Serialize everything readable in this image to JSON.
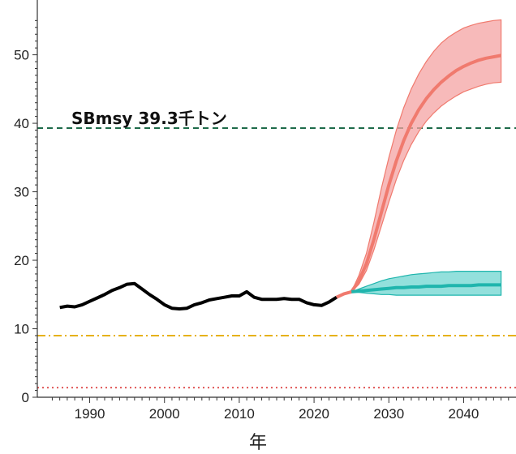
{
  "chart_data": {
    "type": "line",
    "title": "",
    "xlabel": "年",
    "ylabel": "",
    "xlim": [
      1983,
      2047
    ],
    "ylim": [
      0,
      58
    ],
    "x_ticks": [
      1990,
      2000,
      2010,
      2020,
      2030,
      2040
    ],
    "y_ticks": [
      0,
      10,
      20,
      30,
      40,
      50
    ],
    "grid": false,
    "colors": {
      "historical": "#000000",
      "red_band": "#f4a3a3",
      "red_line": "#f07a6e",
      "teal_band": "#6fd6d0",
      "teal_line": "#1fb5ad",
      "sbmsy": "#1e6b4a",
      "limit": "#e6b21a",
      "ban": "#e05555"
    },
    "reference_lines": [
      {
        "name": "SBmsy",
        "value": 39.3,
        "style": "dashed",
        "color": "#1e6b4a"
      },
      {
        "value": 9.0,
        "style": "dashdot",
        "color": "#e6b21a"
      },
      {
        "value": 1.4,
        "style": "dotted",
        "color": "#e05555"
      }
    ],
    "annotation": "SBmsy 39.3千トン",
    "series": [
      {
        "x": [
          1986,
          1987,
          1988,
          1989,
          1990,
          1991,
          1992,
          1993,
          1994,
          1995,
          1996,
          1997,
          1998,
          1999,
          2000,
          2001,
          2002,
          2003,
          2004,
          2005,
          2006,
          2007,
          2008,
          2009,
          2010,
          2011,
          2012,
          2013,
          2014,
          2015,
          2016,
          2017,
          2018,
          2019,
          2020,
          2021,
          2022,
          2023
        ],
        "values": [
          13.1,
          13.3,
          13.2,
          13.5,
          14.0,
          14.5,
          15.0,
          15.6,
          16.0,
          16.5,
          16.6,
          15.8,
          15.0,
          14.3,
          13.5,
          13.0,
          12.9,
          13.0,
          13.5,
          13.8,
          14.2,
          14.4,
          14.6,
          14.8,
          14.8,
          15.4,
          14.6,
          14.3,
          14.3,
          14.3,
          14.4,
          14.3,
          14.3,
          13.8,
          13.5,
          13.4,
          13.9,
          14.6
        ]
      },
      {
        "x": [
          2023,
          2024,
          2025,
          2026,
          2027,
          2028,
          2029,
          2030,
          2031,
          2032,
          2033,
          2034,
          2035,
          2036,
          2037,
          2038,
          2039,
          2040,
          2041,
          2042,
          2043,
          2044,
          2045
        ],
        "values": [
          14.6,
          15.1,
          15.4,
          17.0,
          19.5,
          23.0,
          27.0,
          31.0,
          34.5,
          37.5,
          40.0,
          42.0,
          43.6,
          44.9,
          46.0,
          46.9,
          47.7,
          48.3,
          48.8,
          49.2,
          49.5,
          49.7,
          49.9
        ],
        "lower": [
          14.6,
          15.1,
          15.4,
          16.5,
          18.5,
          21.5,
          25.0,
          28.5,
          31.8,
          34.6,
          36.9,
          38.8,
          40.3,
          41.5,
          42.5,
          43.3,
          44.0,
          44.6,
          45.0,
          45.4,
          45.7,
          45.9,
          46.0
        ],
        "upper": [
          14.6,
          15.1,
          15.4,
          17.8,
          21.0,
          25.5,
          30.5,
          35.0,
          39.0,
          42.3,
          45.0,
          47.2,
          49.0,
          50.5,
          51.7,
          52.6,
          53.3,
          53.9,
          54.3,
          54.6,
          54.8,
          55.0,
          55.1
        ]
      },
      {
        "x": [
          2025,
          2026,
          2027,
          2028,
          2029,
          2030,
          2031,
          2032,
          2033,
          2034,
          2035,
          2036,
          2037,
          2038,
          2039,
          2040,
          2041,
          2042,
          2043,
          2044,
          2045
        ],
        "values": [
          15.4,
          15.5,
          15.6,
          15.7,
          15.8,
          15.9,
          16.0,
          16.0,
          16.1,
          16.1,
          16.2,
          16.2,
          16.2,
          16.3,
          16.3,
          16.3,
          16.3,
          16.4,
          16.4,
          16.4,
          16.4
        ],
        "lower": [
          15.4,
          15.3,
          15.2,
          15.1,
          15.0,
          15.0,
          14.9,
          14.9,
          14.9,
          14.9,
          14.9,
          14.9,
          14.9,
          14.9,
          14.9,
          14.9,
          14.9,
          14.9,
          14.9,
          14.9,
          14.9
        ],
        "upper": [
          15.4,
          15.8,
          16.2,
          16.6,
          17.0,
          17.3,
          17.5,
          17.7,
          17.9,
          18.0,
          18.1,
          18.2,
          18.3,
          18.3,
          18.4,
          18.4,
          18.4,
          18.4,
          18.4,
          18.4,
          18.4
        ]
      }
    ]
  }
}
